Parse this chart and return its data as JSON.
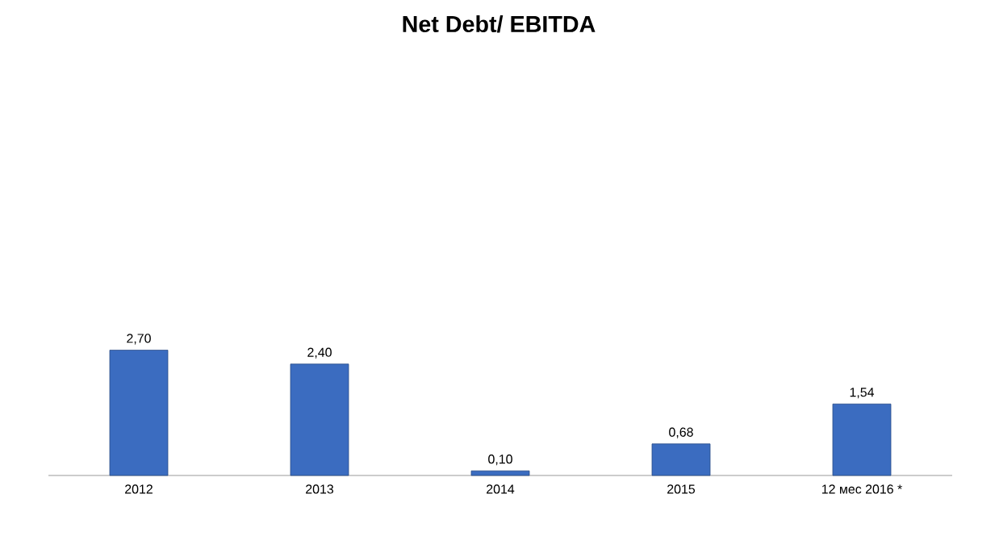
{
  "chart_data": {
    "type": "bar",
    "title": "Net Debt/ EBITDA",
    "categories": [
      "2012",
      "2013",
      "2014",
      "2015",
      "12 мес 2016 *"
    ],
    "values": [
      2.7,
      2.4,
      0.1,
      0.68,
      1.54
    ],
    "value_labels": [
      "2,70",
      "2,40",
      "0,10",
      "0,68",
      "1,54"
    ],
    "color": "#3b6cc0"
  }
}
